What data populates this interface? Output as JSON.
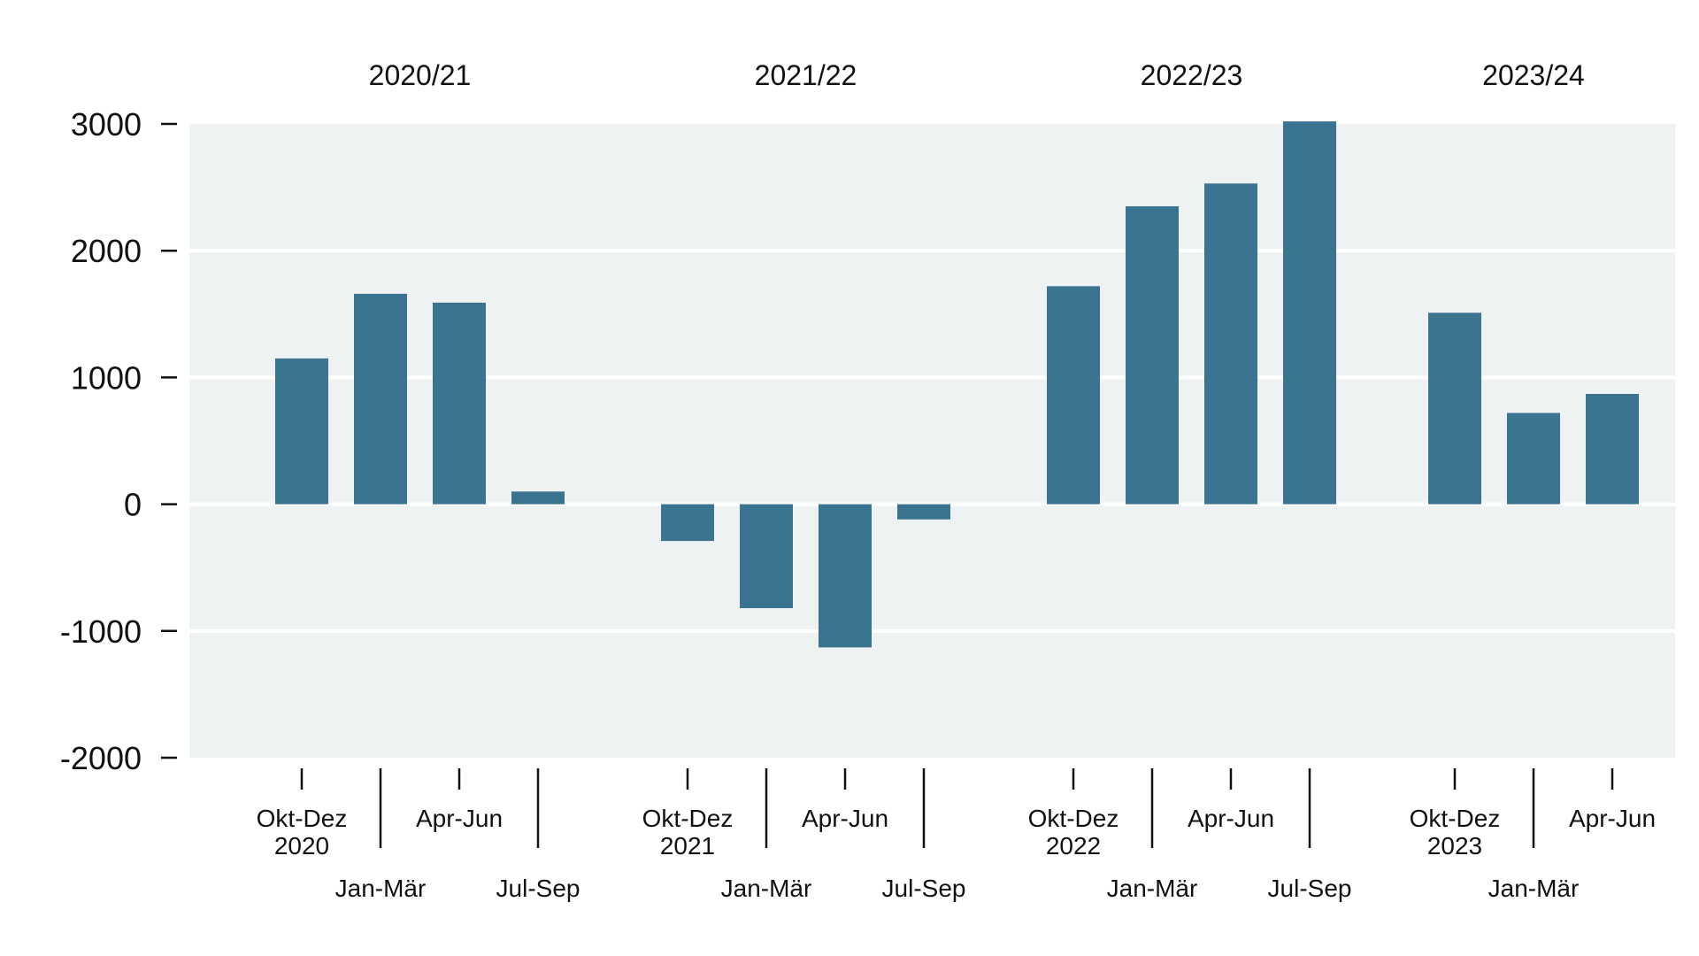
{
  "chart_data": {
    "type": "bar",
    "title": "",
    "xlabel": "",
    "ylabel": "",
    "ylim": [
      -2000,
      3000
    ],
    "yticks": [
      3000,
      2000,
      1000,
      0,
      -1000,
      -2000
    ],
    "yticks_text": [
      "3000",
      "2000",
      "1000",
      "0",
      "-1000",
      "-2000"
    ],
    "grid": true,
    "legend": "none",
    "colors": {
      "bar": "#3b7490",
      "plot_background": "#eff2f3",
      "gridline": "#ffffff",
      "axis_text": "#111111"
    },
    "groups": [
      {
        "label": "2020/21",
        "quarters": [
          {
            "label": "Okt-Dez",
            "year": "2020",
            "value": 1150
          },
          {
            "label": "Jan-Mär",
            "value": 1660
          },
          {
            "label": "Apr-Jun",
            "value": 1590
          },
          {
            "label": "Jul-Sep",
            "value": 100
          }
        ]
      },
      {
        "label": "2021/22",
        "quarters": [
          {
            "label": "Okt-Dez",
            "year": "2021",
            "value": -290
          },
          {
            "label": "Jan-Mär",
            "value": -820
          },
          {
            "label": "Apr-Jun",
            "value": -1130
          },
          {
            "label": "Jul-Sep",
            "value": -120
          }
        ]
      },
      {
        "label": "2022/23",
        "quarters": [
          {
            "label": "Okt-Dez",
            "year": "2022",
            "value": 1720
          },
          {
            "label": "Jan-Mär",
            "value": 2350
          },
          {
            "label": "Apr-Jun",
            "value": 2530
          },
          {
            "label": "Jul-Sep",
            "value": 3020
          }
        ]
      },
      {
        "label": "2023/24",
        "quarters": [
          {
            "label": "Okt-Dez",
            "year": "2023",
            "value": 1510
          },
          {
            "label": "Jan-Mär",
            "value": 720
          },
          {
            "label": "Apr-Jun",
            "value": 870
          }
        ]
      }
    ]
  }
}
